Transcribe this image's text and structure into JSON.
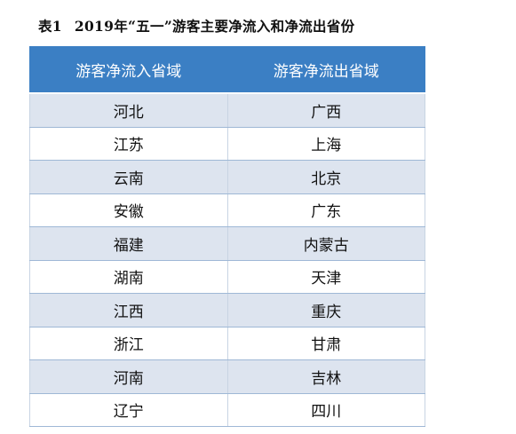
{
  "caption": {
    "label": "表1",
    "title": "2019年“五一”游客主要净流入和净流出省份"
  },
  "table": {
    "headers": [
      "游客净流入省域",
      "游客净流出省域"
    ],
    "rows": [
      [
        "河北",
        "广西"
      ],
      [
        "江苏",
        "上海"
      ],
      [
        "云南",
        "北京"
      ],
      [
        "安徽",
        "广东"
      ],
      [
        "福建",
        "内蒙古"
      ],
      [
        "湖南",
        "天津"
      ],
      [
        "江西",
        "重庆"
      ],
      [
        "浙江",
        "甘肃"
      ],
      [
        "河南",
        "吉林"
      ],
      [
        "辽宁",
        "四川"
      ]
    ]
  }
}
